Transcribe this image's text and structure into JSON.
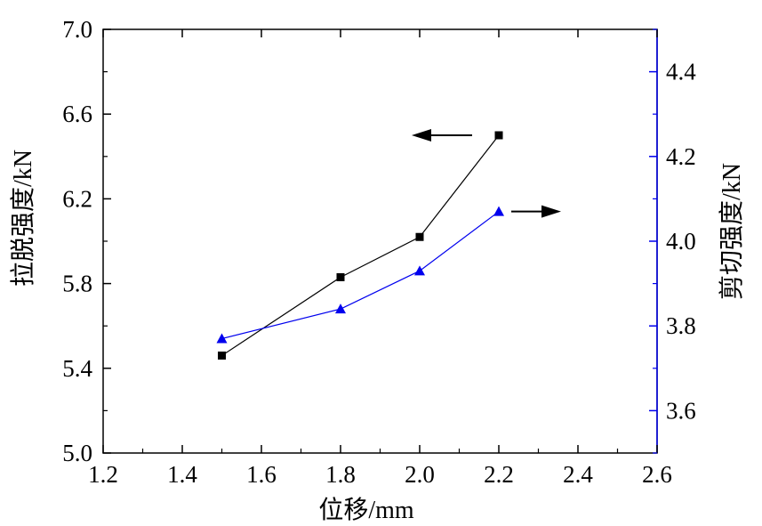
{
  "chart_data": {
    "type": "line",
    "xlabel": "位移/mm",
    "ylabel_left": "拉脱强度/kN",
    "ylabel_right": "剪切强度/kN",
    "xlim": [
      1.2,
      2.6
    ],
    "ylim_left": [
      5.0,
      7.0
    ],
    "ylim_right": [
      3.5,
      4.5
    ],
    "x_ticks": [
      "1.2",
      "1.4",
      "1.6",
      "1.8",
      "2.0",
      "2.2",
      "2.4",
      "2.6"
    ],
    "y_left_ticks": [
      "5.0",
      "5.4",
      "5.8",
      "6.2",
      "6.6",
      "7.0"
    ],
    "y_right_ticks": [
      "3.6",
      "3.8",
      "4.0",
      "4.2",
      "4.4"
    ],
    "grid": false,
    "series": [
      {
        "axis": "left",
        "marker": "square",
        "color": "#000000",
        "x": [
          1.5,
          1.8,
          2.0,
          2.2
        ],
        "y": [
          5.46,
          5.83,
          6.02,
          6.5
        ]
      },
      {
        "axis": "right",
        "marker": "triangle",
        "color": "#0000ee",
        "x": [
          1.5,
          1.8,
          2.0,
          2.2
        ],
        "y": [
          3.77,
          3.84,
          3.93,
          4.07
        ]
      }
    ],
    "annotations": [
      {
        "type": "arrow",
        "direction": "left",
        "points_to": "left-axis",
        "series": 0
      },
      {
        "type": "arrow",
        "direction": "right",
        "points_to": "right-axis",
        "series": 1
      }
    ]
  }
}
